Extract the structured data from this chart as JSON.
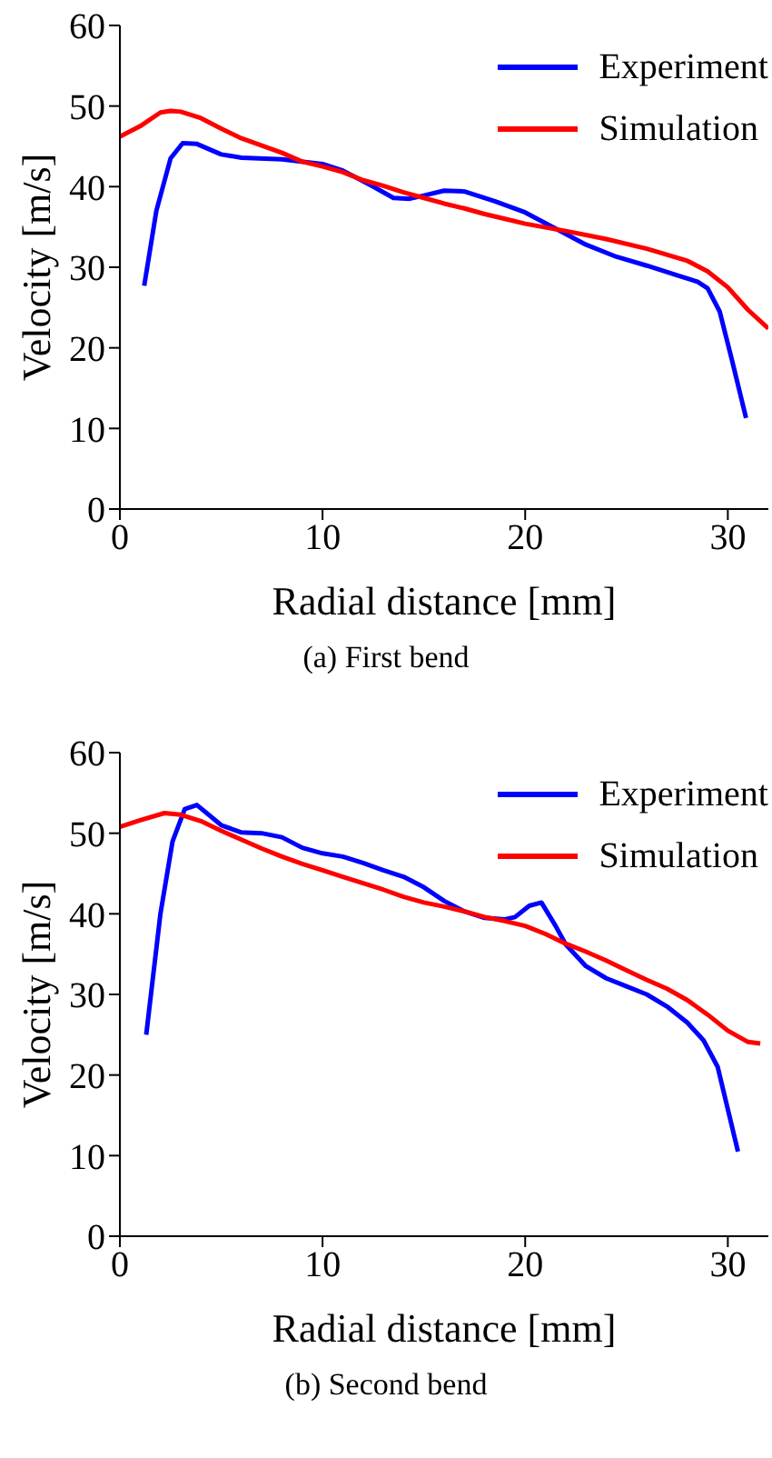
{
  "chart_data": [
    {
      "type": "line",
      "title": "(a) First bend",
      "xlabel": "Radial distance [mm]",
      "ylabel": "Velocity [m/s]",
      "xlim": [
        0,
        32
      ],
      "xticks": [
        0,
        10,
        20,
        30
      ],
      "ylim": [
        0,
        60
      ],
      "yticks": [
        0,
        10,
        20,
        30,
        40,
        50,
        60
      ],
      "grid": false,
      "legend": "top right",
      "marker": "none",
      "line_style": "solid",
      "series": [
        {
          "name": "Experiment",
          "color": "#0000ff",
          "x": [
            1.2,
            1.8,
            2.5,
            3.1,
            3.8,
            5,
            6,
            8,
            10,
            11,
            12.5,
            13.5,
            14.3,
            15,
            16,
            17,
            18.5,
            20,
            21.5,
            23,
            24.5,
            26,
            27.5,
            28.5,
            29,
            29.6,
            30.2,
            30.9
          ],
          "values": [
            27.7,
            37,
            43.5,
            45.4,
            45.3,
            44,
            43.6,
            43.4,
            42.8,
            42,
            40,
            38.6,
            38.5,
            38.9,
            39.5,
            39.4,
            38.2,
            36.8,
            34.8,
            32.8,
            31.3,
            30.2,
            29,
            28.2,
            27.4,
            24.5,
            18.5,
            11.3
          ]
        },
        {
          "name": "Simulation",
          "color": "#ff0000",
          "x": [
            0,
            1,
            2,
            2.5,
            3,
            4,
            5,
            6,
            7,
            8,
            9,
            10,
            11,
            12,
            13,
            14,
            15,
            16,
            17,
            18,
            19,
            20,
            22,
            24,
            26,
            28,
            29,
            30,
            31,
            32
          ],
          "values": [
            46.2,
            47.5,
            49.2,
            49.4,
            49.3,
            48.5,
            47.2,
            46,
            45.1,
            44.2,
            43.1,
            42.5,
            41.8,
            40.8,
            40.1,
            39.3,
            38.6,
            37.9,
            37.3,
            36.6,
            36,
            35.4,
            34.5,
            33.5,
            32.3,
            30.8,
            29.5,
            27.5,
            24.7,
            22.4
          ]
        }
      ]
    },
    {
      "type": "line",
      "title": "(b) Second bend",
      "xlabel": "Radial distance [mm]",
      "ylabel": "Velocity [m/s]",
      "xlim": [
        0,
        32
      ],
      "xticks": [
        0,
        10,
        20,
        30
      ],
      "ylim": [
        0,
        60
      ],
      "yticks": [
        0,
        10,
        20,
        30,
        40,
        50,
        60
      ],
      "grid": false,
      "legend": "top right",
      "marker": "none",
      "line_style": "solid",
      "series": [
        {
          "name": "Experiment",
          "color": "#0000ff",
          "x": [
            1.3,
            2,
            2.6,
            3.2,
            3.8,
            5,
            6,
            7,
            8,
            9,
            10,
            11,
            12,
            13,
            14,
            15,
            16,
            17,
            18,
            19,
            19.5,
            20.2,
            20.8,
            21.5,
            22,
            23,
            24,
            25,
            26,
            27,
            28,
            28.8,
            29.5,
            30.5
          ],
          "values": [
            25,
            40,
            49,
            53,
            53.5,
            51,
            50.1,
            50,
            49.5,
            48.2,
            47.5,
            47.1,
            46.3,
            45.4,
            44.6,
            43.3,
            41.6,
            40.3,
            39.5,
            39.3,
            39.6,
            41,
            41.4,
            38.5,
            36.2,
            33.5,
            32,
            31,
            30,
            28.5,
            26.5,
            24.3,
            21,
            10.5
          ]
        },
        {
          "name": "Simulation",
          "color": "#ff0000",
          "x": [
            0,
            1,
            2.2,
            3,
            4,
            5,
            6,
            7,
            8,
            9,
            10,
            11,
            12,
            13,
            14,
            15,
            16,
            17,
            18,
            19,
            20,
            21,
            22,
            23,
            24,
            25,
            26,
            27,
            28,
            29,
            30,
            31,
            31.6
          ],
          "values": [
            50.8,
            51.6,
            52.5,
            52.3,
            51.5,
            50.3,
            49.2,
            48.1,
            47.1,
            46.2,
            45.4,
            44.6,
            43.8,
            43,
            42.1,
            41.4,
            40.9,
            40.3,
            39.6,
            39.1,
            38.5,
            37.5,
            36.3,
            35.3,
            34.2,
            33,
            31.8,
            30.7,
            29.3,
            27.5,
            25.5,
            24.1,
            23.9
          ]
        }
      ]
    }
  ]
}
